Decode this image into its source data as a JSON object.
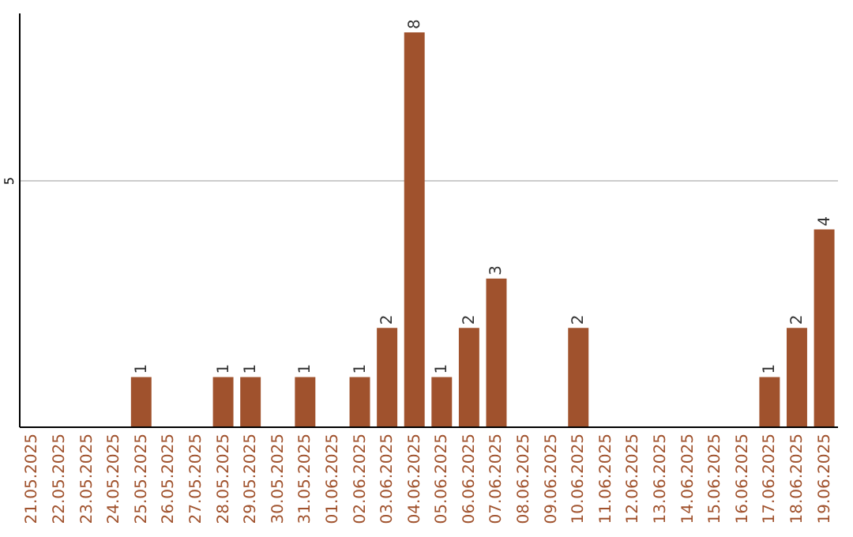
{
  "chart_data": {
    "type": "bar",
    "categories": [
      "21.05.2025",
      "22.05.2025",
      "23.05.2025",
      "24.05.2025",
      "25.05.2025",
      "26.05.2025",
      "27.05.2025",
      "28.05.2025",
      "29.05.2025",
      "30.05.2025",
      "31.05.2025",
      "01.06.2025",
      "02.06.2025",
      "03.06.2025",
      "04.06.2025",
      "05.06.2025",
      "06.06.2025",
      "07.06.2025",
      "08.06.2025",
      "09.06.2025",
      "10.06.2025",
      "11.06.2025",
      "12.06.2025",
      "13.06.2025",
      "14.06.2025",
      "15.06.2025",
      "16.06.2025",
      "17.06.2025",
      "18.06.2025",
      "19.06.2025"
    ],
    "values": [
      0,
      0,
      0,
      0,
      1,
      0,
      0,
      1,
      1,
      0,
      1,
      0,
      1,
      2,
      8,
      1,
      2,
      3,
      0,
      0,
      2,
      0,
      0,
      0,
      0,
      0,
      0,
      1,
      2,
      4
    ],
    "value_labels": [
      null,
      null,
      null,
      null,
      "1",
      null,
      null,
      "1",
      "1",
      null,
      "1",
      null,
      "1",
      "2",
      "8",
      "1",
      "2",
      "3",
      null,
      null,
      "2",
      null,
      null,
      null,
      null,
      null,
      null,
      "1",
      "2",
      "4"
    ],
    "color": "#a0522d",
    "ylim": [
      0,
      8.4
    ],
    "yticks": [
      {
        "value": 0,
        "label": null
      },
      5
    ],
    "grid": "y"
  }
}
